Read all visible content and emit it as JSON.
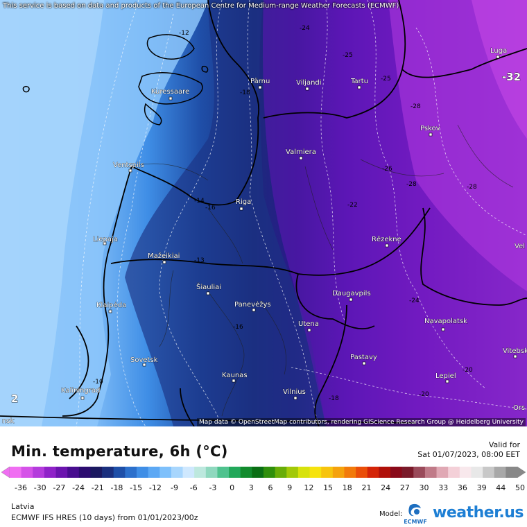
{
  "attribution": {
    "top": "This service is based on data and products of the European Centre for Medium-range Weather Forecasts (ECMWF)",
    "bottom": "Map data © OpenStreetMap contributors, rendering GIScience Research Group @ Heidelberg University"
  },
  "map": {
    "cities": [
      {
        "name": "Luga"
      },
      {
        "name": "Pärnu"
      },
      {
        "name": "Viljandi"
      },
      {
        "name": "Tartu"
      },
      {
        "name": "Kuressaare"
      },
      {
        "name": "Pskov"
      },
      {
        "name": "Valmiera"
      },
      {
        "name": "Ventspils"
      },
      {
        "name": "Riga"
      },
      {
        "name": "Liepaja"
      },
      {
        "name": "Rēzekne"
      },
      {
        "name": "Mažeikiai"
      },
      {
        "name": "Šiauliai"
      },
      {
        "name": "Daugavpils"
      },
      {
        "name": "Klaipėda"
      },
      {
        "name": "Panevėžys"
      },
      {
        "name": "Navapolatsk"
      },
      {
        "name": "Utena"
      },
      {
        "name": "Sovetsk"
      },
      {
        "name": "Pastavy"
      },
      {
        "name": "Lepiel"
      },
      {
        "name": "Kaunas"
      },
      {
        "name": "Kaliningrad"
      },
      {
        "name": "Vilnius"
      },
      {
        "name": "Vitebsk"
      }
    ],
    "edge_labels": {
      "vel": "Vel",
      "orsh": "Ors",
      "nsk": "nsk",
      "left_value": "2",
      "right_value": "-32"
    },
    "contour_labels": [
      "-12",
      "-18",
      "-24",
      "-25",
      "-25",
      "-28",
      "-28",
      "-26",
      "-28",
      "-14",
      "-16",
      "-22",
      "-13",
      "-24",
      "-16",
      "-20",
      "-10",
      "-18",
      "-20"
    ]
  },
  "legend": {
    "title": "Min. temperature, 6h (°C)",
    "valid_for": "Valid for",
    "valid_time": "Sat 01/07/2023, 08:00 EET",
    "ticks": [
      "-36",
      "-30",
      "-27",
      "-24",
      "-21",
      "-18",
      "-15",
      "-12",
      "-9",
      "-6",
      "-3",
      "0",
      "3",
      "6",
      "9",
      "12",
      "15",
      "18",
      "21",
      "24",
      "27",
      "30",
      "33",
      "36",
      "39",
      "44",
      "50"
    ],
    "colors": [
      "#f06ef2",
      "#d552e8",
      "#b43bdc",
      "#8f22c8",
      "#6b14ae",
      "#480d8f",
      "#2c0c70",
      "#1b1960",
      "#1a2f7e",
      "#1e4fa8",
      "#2c70cc",
      "#3f8ee6",
      "#5ca8f4",
      "#7ec0fb",
      "#a8d6fd",
      "#cfe8fe",
      "#bde8de",
      "#8fd8be",
      "#4fc28e",
      "#22a85a",
      "#128b2d",
      "#0a6f14",
      "#2f8f0c",
      "#68ad08",
      "#a2c908",
      "#d7e20c",
      "#f6e30e",
      "#f7c40d",
      "#f5a20c",
      "#f27a0a",
      "#ea4e09",
      "#d42408",
      "#b0100a",
      "#8a0a1a",
      "#7a1a2a",
      "#9a4a5a",
      "#c07a88",
      "#e0a8b4",
      "#f4d0d8",
      "#f8e8ec",
      "#e8e8e8",
      "#c8c8c8",
      "#a8a8a8",
      "#888888"
    ],
    "region": "Latvia",
    "model_run": "ECMWF IFS HRES (10 days) from 01/01/2023/00z",
    "model_label": "Model:",
    "ecmwf_text": "ECMWF",
    "brand": "weather.us"
  }
}
